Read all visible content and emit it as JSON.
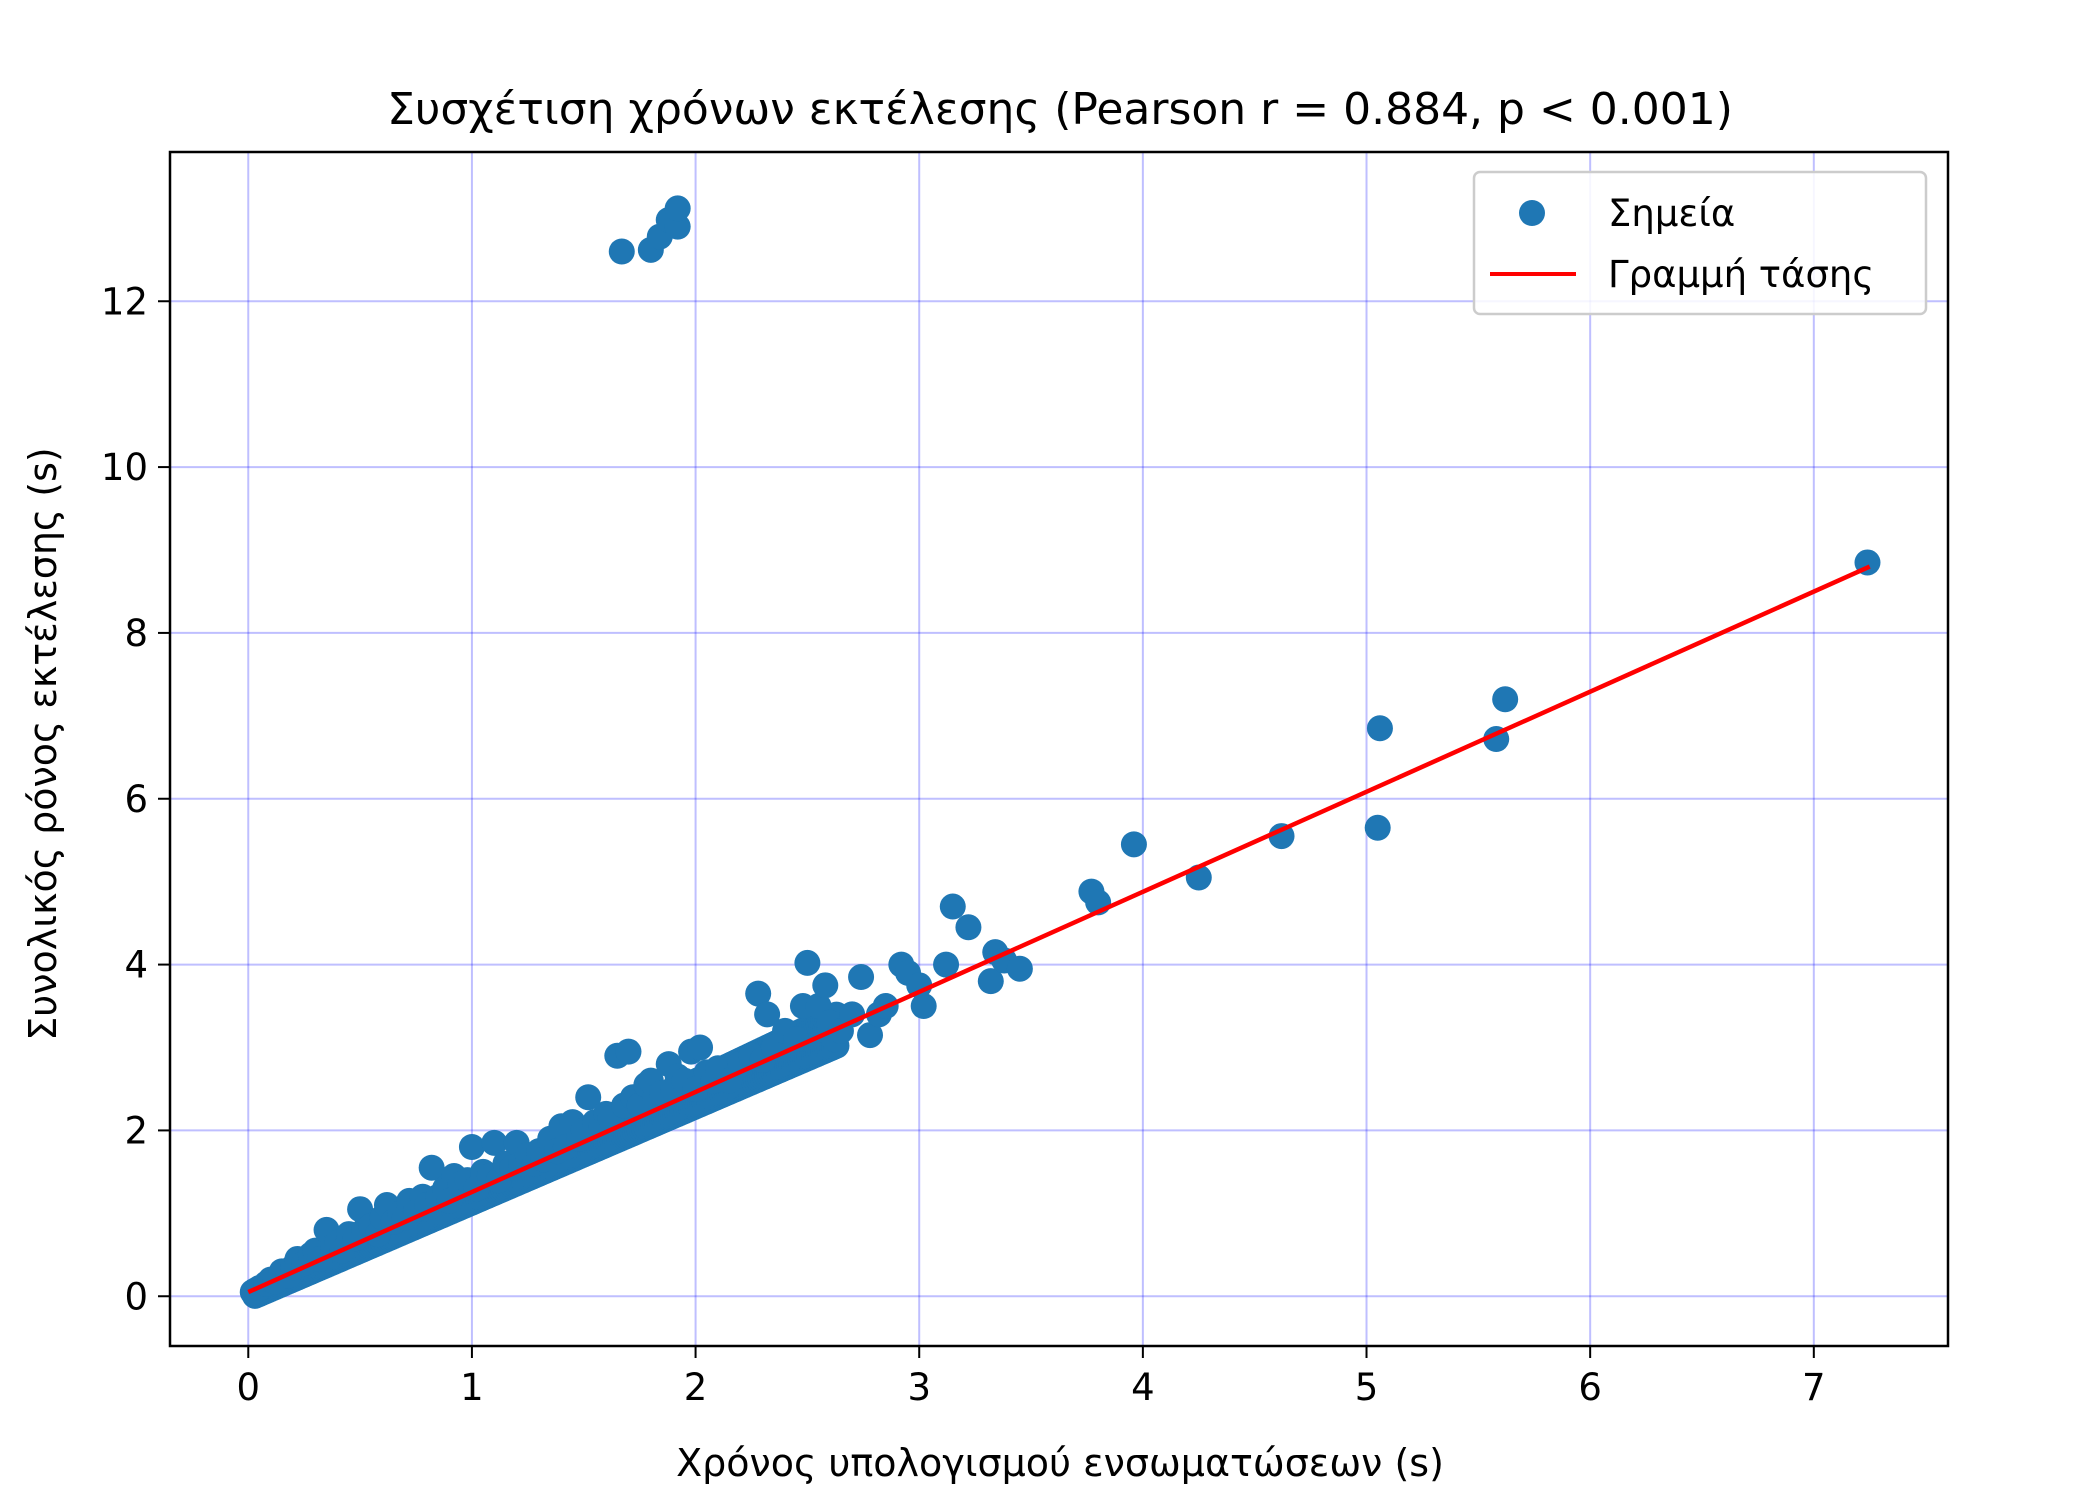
{
  "chart_data": {
    "type": "scatter",
    "title": "Συσχέτιση χρόνων εκτέλεσης (Pearson r = 0.884, p < 0.001)",
    "xlabel": "Χρόνος υπολογισμού ενσωματώσεων (s)",
    "ylabel": "Συνολικός ρόνος εκτέλεσης (s)",
    "xlim": [
      -0.35,
      7.6
    ],
    "ylim": [
      -0.6,
      13.8
    ],
    "xticks": [
      0,
      1,
      2,
      3,
      4,
      5,
      6,
      7
    ],
    "yticks": [
      0,
      2,
      4,
      6,
      8,
      10,
      12
    ],
    "grid": true,
    "legend_position": "top-right",
    "colors": {
      "points": "#1f77b4",
      "trend": "#ff0000",
      "grid": "#0000ff"
    },
    "legend": {
      "points_label": "Σημεία",
      "trend_label": "Γραμμή τάσης"
    },
    "trend_line": {
      "x": [
        0.0,
        7.25
      ],
      "y": [
        0.05,
        8.8
      ]
    },
    "points": [
      [
        0.02,
        0.05
      ],
      [
        0.05,
        0.1
      ],
      [
        0.08,
        0.15
      ],
      [
        0.1,
        0.2
      ],
      [
        0.12,
        0.18
      ],
      [
        0.15,
        0.3
      ],
      [
        0.18,
        0.25
      ],
      [
        0.2,
        0.35
      ],
      [
        0.22,
        0.45
      ],
      [
        0.25,
        0.4
      ],
      [
        0.28,
        0.5
      ],
      [
        0.3,
        0.55
      ],
      [
        0.32,
        0.45
      ],
      [
        0.35,
        0.8
      ],
      [
        0.38,
        0.6
      ],
      [
        0.4,
        0.65
      ],
      [
        0.42,
        0.55
      ],
      [
        0.45,
        0.75
      ],
      [
        0.48,
        0.7
      ],
      [
        0.5,
        1.05
      ],
      [
        0.52,
        0.8
      ],
      [
        0.55,
        0.85
      ],
      [
        0.58,
        0.75
      ],
      [
        0.6,
        0.95
      ],
      [
        0.62,
        1.1
      ],
      [
        0.65,
        0.9
      ],
      [
        0.68,
        1.0
      ],
      [
        0.7,
        0.95
      ],
      [
        0.72,
        1.15
      ],
      [
        0.75,
        1.05
      ],
      [
        0.78,
        1.2
      ],
      [
        0.8,
        1.1
      ],
      [
        0.82,
        1.55
      ],
      [
        0.85,
        1.2
      ],
      [
        0.88,
        1.3
      ],
      [
        0.9,
        1.15
      ],
      [
        0.92,
        1.45
      ],
      [
        0.95,
        1.35
      ],
      [
        0.98,
        1.4
      ],
      [
        1.0,
        1.8
      ],
      [
        1.02,
        1.3
      ],
      [
        1.05,
        1.5
      ],
      [
        1.08,
        1.45
      ],
      [
        1.1,
        1.85
      ],
      [
        1.12,
        1.4
      ],
      [
        1.15,
        1.6
      ],
      [
        1.18,
        1.55
      ],
      [
        1.2,
        1.85
      ],
      [
        1.22,
        1.6
      ],
      [
        1.25,
        1.7
      ],
      [
        1.28,
        1.6
      ],
      [
        1.3,
        1.75
      ],
      [
        1.32,
        1.65
      ],
      [
        1.35,
        1.9
      ],
      [
        1.38,
        1.75
      ],
      [
        1.4,
        2.05
      ],
      [
        1.42,
        1.8
      ],
      [
        1.45,
        2.1
      ],
      [
        1.48,
        1.9
      ],
      [
        1.5,
        2.0
      ],
      [
        1.52,
        2.4
      ],
      [
        1.55,
        2.1
      ],
      [
        1.58,
        2.05
      ],
      [
        1.6,
        2.2
      ],
      [
        1.62,
        2.15
      ],
      [
        1.65,
        2.9
      ],
      [
        1.68,
        2.3
      ],
      [
        1.7,
        2.95
      ],
      [
        1.72,
        2.4
      ],
      [
        1.75,
        2.3
      ],
      [
        1.78,
        2.55
      ],
      [
        1.8,
        2.6
      ],
      [
        1.82,
        2.4
      ],
      [
        1.85,
        2.45
      ],
      [
        1.88,
        2.8
      ],
      [
        1.9,
        2.5
      ],
      [
        1.92,
        2.65
      ],
      [
        1.95,
        2.6
      ],
      [
        1.98,
        2.95
      ],
      [
        2.0,
        2.5
      ],
      [
        2.02,
        3.0
      ],
      [
        2.05,
        2.7
      ],
      [
        2.08,
        2.6
      ],
      [
        2.1,
        2.75
      ],
      [
        2.15,
        2.6
      ],
      [
        2.2,
        2.8
      ],
      [
        2.25,
        2.9
      ],
      [
        2.28,
        3.65
      ],
      [
        2.3,
        2.85
      ],
      [
        2.32,
        3.4
      ],
      [
        2.35,
        3.0
      ],
      [
        2.4,
        3.2
      ],
      [
        2.45,
        3.1
      ],
      [
        2.48,
        3.5
      ],
      [
        2.5,
        4.02
      ],
      [
        2.55,
        3.5
      ],
      [
        2.58,
        3.75
      ],
      [
        2.6,
        3.3
      ],
      [
        2.62,
        3.1
      ],
      [
        2.65,
        3.2
      ],
      [
        2.7,
        3.4
      ],
      [
        2.74,
        3.85
      ],
      [
        2.78,
        3.15
      ],
      [
        2.82,
        3.4
      ],
      [
        2.85,
        3.5
      ],
      [
        2.92,
        4.0
      ],
      [
        2.95,
        3.9
      ],
      [
        3.0,
        3.75
      ],
      [
        3.02,
        3.5
      ],
      [
        3.12,
        4.0
      ],
      [
        3.15,
        4.7
      ],
      [
        3.22,
        4.45
      ],
      [
        3.32,
        3.8
      ],
      [
        3.34,
        4.15
      ],
      [
        3.38,
        4.05
      ],
      [
        3.45,
        3.95
      ],
      [
        3.77,
        4.88
      ],
      [
        3.8,
        4.75
      ],
      [
        3.96,
        5.45
      ],
      [
        4.25,
        5.05
      ],
      [
        4.62,
        5.55
      ],
      [
        5.05,
        5.65
      ],
      [
        5.06,
        6.85
      ],
      [
        5.58,
        6.72
      ],
      [
        5.62,
        7.2
      ],
      [
        7.24,
        8.85
      ],
      [
        1.67,
        12.6
      ],
      [
        1.8,
        12.62
      ],
      [
        1.84,
        12.78
      ],
      [
        1.88,
        12.98
      ],
      [
        1.92,
        12.9
      ],
      [
        1.92,
        13.12
      ]
    ]
  }
}
